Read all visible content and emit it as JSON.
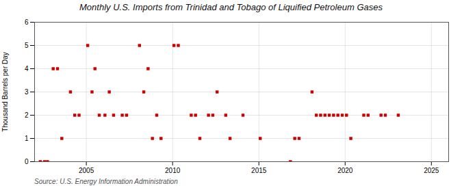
{
  "chart_data": {
    "type": "scatter",
    "title": "Monthly U.S. Imports from Trinidad and Tobago of Liquified Petroleum Gases",
    "ylabel": "Thousand Barrels per Day",
    "source": "Source: U.S. Energy Information Administration",
    "color": "#cc0000",
    "marker": "square",
    "grid": true,
    "xlim": [
      2002,
      2026
    ],
    "xticks": [
      2005,
      2010,
      2015,
      2020,
      2025
    ],
    "ylim": [
      0,
      6
    ],
    "yticks": [
      0,
      1,
      2,
      3,
      4,
      5,
      6
    ],
    "x": [
      2002.33,
      2002.58,
      2002.75,
      2003.08,
      2003.33,
      2003.58,
      2004.08,
      2004.33,
      2004.58,
      2005.08,
      2005.33,
      2005.5,
      2005.75,
      2006.08,
      2006.33,
      2006.58,
      2007.08,
      2007.33,
      2008.08,
      2008.33,
      2008.58,
      2008.83,
      2009.08,
      2009.33,
      2010.08,
      2010.33,
      2011.08,
      2011.33,
      2011.58,
      2012.08,
      2012.33,
      2012.58,
      2013.08,
      2013.33,
      2014.08,
      2015.08,
      2016.83,
      2017.08,
      2017.33,
      2018.08,
      2018.33,
      2018.58,
      2018.83,
      2019.08,
      2019.33,
      2019.58,
      2019.83,
      2020.08,
      2020.33,
      2021.08,
      2021.33,
      2022.08,
      2022.33,
      2023.08
    ],
    "values": [
      0.0,
      0.0,
      0.0,
      4.0,
      4.0,
      1.0,
      3.0,
      2.0,
      2.0,
      5.0,
      3.0,
      4.0,
      2.0,
      2.0,
      3.0,
      2.0,
      2.0,
      2.0,
      5.0,
      3.0,
      4.0,
      1.0,
      2.0,
      1.0,
      5.0,
      5.0,
      2.0,
      2.0,
      1.0,
      2.0,
      2.0,
      3.0,
      2.0,
      1.0,
      2.0,
      1.0,
      0.0,
      1.0,
      1.0,
      3.0,
      2.0,
      2.0,
      2.0,
      2.0,
      2.0,
      2.0,
      2.0,
      2.0,
      1.0,
      2.0,
      2.0,
      2.0,
      2.0,
      2.0
    ]
  }
}
